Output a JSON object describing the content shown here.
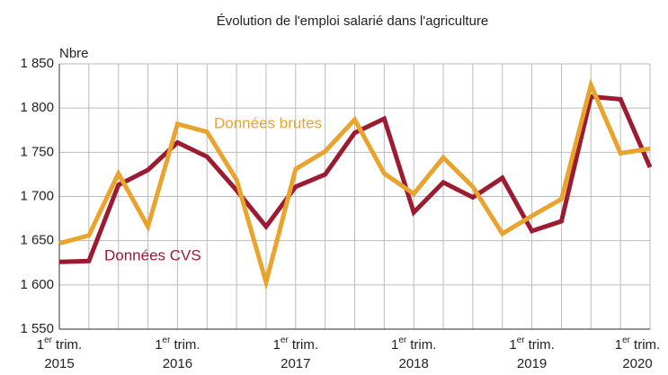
{
  "chart_data": {
    "type": "line",
    "title": "Évolution de l'emploi salarié dans l'agriculture",
    "y_axis_label": "Nbre",
    "quarter_label": {
      "number": "1",
      "suffix": "er",
      "word": "trim."
    },
    "categories": [
      "2015",
      null,
      null,
      null,
      "2016",
      null,
      null,
      null,
      "2017",
      null,
      null,
      null,
      "2018",
      null,
      null,
      null,
      "2019",
      null,
      null,
      null,
      "2020"
    ],
    "series": [
      {
        "name": "Données CVS",
        "color": "#9b1b30",
        "values": [
          1626,
          1627,
          1713,
          1730,
          1761,
          1745,
          1707,
          1666,
          1711,
          1725,
          1772,
          1788,
          1682,
          1716,
          1699,
          1721,
          1661,
          1672,
          1813,
          1810,
          1733
        ]
      },
      {
        "name": "Données brutes",
        "color": "#e8a42c",
        "values": [
          1647,
          1656,
          1726,
          1666,
          1782,
          1773,
          1719,
          1603,
          1731,
          1751,
          1787,
          1726,
          1703,
          1744,
          1711,
          1658,
          1678,
          1697,
          1826,
          1749,
          1754
        ]
      }
    ],
    "ylim": [
      1550,
      1850
    ],
    "yticks": [
      {
        "value": 1550,
        "label": "1 550"
      },
      {
        "value": 1600,
        "label": "1 600"
      },
      {
        "value": 1650,
        "label": "1 650"
      },
      {
        "value": 1700,
        "label": "1 700"
      },
      {
        "value": 1750,
        "label": "1 750"
      },
      {
        "value": 1800,
        "label": "1 800"
      },
      {
        "value": 1850,
        "label": "1 850"
      }
    ],
    "grid": true
  }
}
